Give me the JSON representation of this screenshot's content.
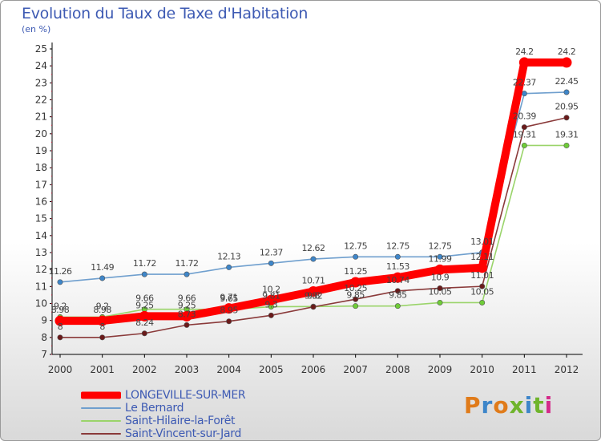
{
  "title": "Evolution du Taux de Taxe d'Habitation",
  "subtitle": "(en %)",
  "logo": {
    "text": "Proxiti",
    "colors": [
      "#e07b1a",
      "#3e86c9",
      "#e07b1a",
      "#6fb42c",
      "#3e86c9",
      "#6fb42c",
      "#d42a8a"
    ]
  },
  "chart_data": {
    "type": "line",
    "x": [
      "2000",
      "2001",
      "2002",
      "2003",
      "2004",
      "2005",
      "2006",
      "2007",
      "2008",
      "2009",
      "2010",
      "2011",
      "2012"
    ],
    "ylim": [
      7,
      25
    ],
    "yticks": [
      "7",
      "8",
      "9",
      "10",
      "11",
      "12",
      "13",
      "14",
      "15",
      "16",
      "17",
      "18",
      "19",
      "20",
      "21",
      "22",
      "23",
      "24",
      "25"
    ],
    "grid": false,
    "legend_placement": "bottom",
    "series": [
      {
        "name": "LONGEVILLE-SUR-MER",
        "color": "#ff0000",
        "marker": "#ff0000",
        "values": [
          8.98,
          8.98,
          9.25,
          9.25,
          9.71,
          10.2,
          10.71,
          11.25,
          11.53,
          11.99,
          12.11,
          24.2,
          24.2
        ],
        "labels": [
          "8.98",
          "8.98",
          "9.25",
          "9.25",
          "9.71",
          "10.2",
          "10.71",
          "11.25",
          "11.53",
          "11.99",
          "12.11",
          "24.2",
          "24.2"
        ]
      },
      {
        "name": "Le Bernard",
        "color": "#6f9fce",
        "marker": "#3e86c9",
        "values": [
          11.26,
          11.49,
          11.72,
          11.72,
          12.13,
          12.37,
          12.62,
          12.75,
          12.75,
          12.75,
          13.01,
          22.37,
          22.45
        ],
        "labels": [
          "11.26",
          "11.49",
          "11.72",
          "11.72",
          "12.13",
          "12.37",
          "12.62",
          "12.75",
          "12.75",
          "12.75",
          "13.01",
          "22.37",
          "22.45"
        ]
      },
      {
        "name": "Saint-Hilaire-la-Forêt",
        "color": "#9ad46a",
        "marker": "#6fcc38",
        "values": [
          9.2,
          9.2,
          9.66,
          9.66,
          9.65,
          9.81,
          9.82,
          9.85,
          9.85,
          10.05,
          10.05,
          19.31,
          19.31
        ],
        "labels": [
          "9.2",
          "9.2",
          "9.66",
          "9.66",
          "9.65",
          "9.81",
          "9.82",
          "9.85",
          "9.85",
          "10.05",
          "10.05",
          "19.31",
          "19.31"
        ]
      },
      {
        "name": "Saint-Vincent-sur-Jard",
        "color": "#8a3a3a",
        "marker": "#6a1a1a",
        "values": [
          8,
          8,
          8.24,
          8.73,
          8.95,
          9.3,
          9.8,
          10.25,
          10.74,
          10.9,
          11.01,
          20.39,
          20.95
        ],
        "labels": [
          "8",
          "8",
          "8.24",
          "8.73",
          "8.95",
          "9.3",
          "9.8",
          "10.25",
          "10.74",
          "10.9",
          "11.01",
          "20.39",
          "20.95"
        ]
      }
    ]
  }
}
